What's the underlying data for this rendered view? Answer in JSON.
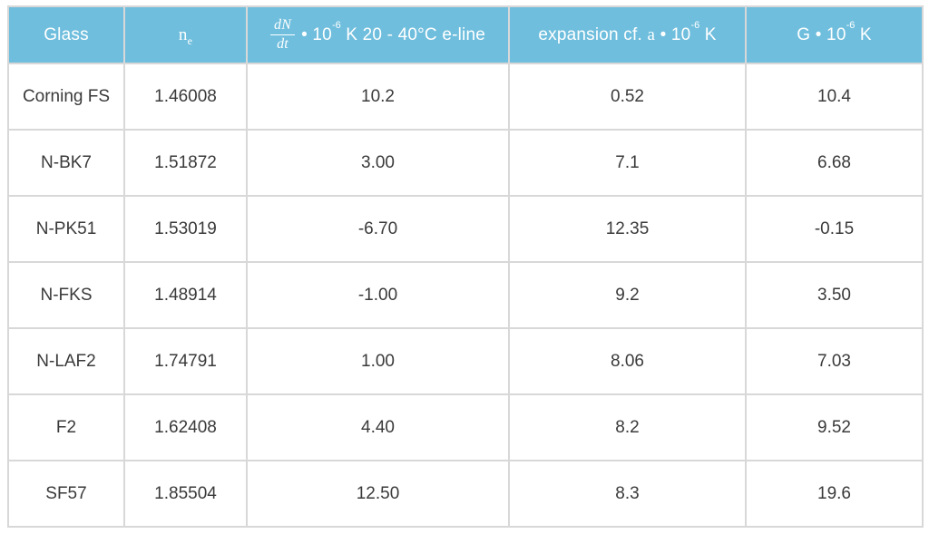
{
  "header": {
    "glass": "Glass",
    "ne_base": "n",
    "ne_sub": "e",
    "dndt_num": "dN",
    "dndt_den": "dt",
    "dndt_mid": "• 10",
    "dndt_sup": "-6",
    "dndt_rest": " K 20 - 40°C e-line",
    "expansion_pre": "expansion cf. ",
    "expansion_sym": "a",
    "expansion_mid": " • 10",
    "expansion_sup": "-6",
    "expansion_post": " K",
    "g_pre": "G • 10",
    "g_sup": "-6",
    "g_post": " K"
  },
  "rows": [
    {
      "glass": "Corning FS",
      "ne": "1.46008",
      "dndt": "10.2",
      "expansion": "0.52",
      "g": "10.4"
    },
    {
      "glass": "N-BK7",
      "ne": "1.51872",
      "dndt": "3.00",
      "expansion": "7.1",
      "g": "6.68"
    },
    {
      "glass": "N-PK51",
      "ne": "1.53019",
      "dndt": "-6.70",
      "expansion": "12.35",
      "g": "-0.15"
    },
    {
      "glass": "N-FKS",
      "ne": "1.48914",
      "dndt": "-1.00",
      "expansion": "9.2",
      "g": "3.50"
    },
    {
      "glass": "N-LAF2",
      "ne": "1.74791",
      "dndt": "1.00",
      "expansion": "8.06",
      "g": "7.03"
    },
    {
      "glass": "F2",
      "ne": "1.62408",
      "dndt": "4.40",
      "expansion": "8.2",
      "g": "9.52"
    },
    {
      "glass": "SF57",
      "ne": "1.85504",
      "dndt": "12.50",
      "expansion": "8.3",
      "g": "19.6"
    }
  ],
  "colors": {
    "header_bg": "#6fbedd",
    "header_text": "#ffffff",
    "border": "#d8d8d8",
    "body_text": "#3a3a3a"
  },
  "chart_data": {
    "type": "table",
    "title": "",
    "columns": [
      "Glass",
      "n_e",
      "dN/dt • 10^-6 K 20 - 40°C e-line",
      "expansion cf. a • 10^-6 K",
      "G • 10^-6 K"
    ],
    "rows": [
      [
        "Corning FS",
        1.46008,
        10.2,
        0.52,
        10.4
      ],
      [
        "N-BK7",
        1.51872,
        3.0,
        7.1,
        6.68
      ],
      [
        "N-PK51",
        1.53019,
        -6.7,
        12.35,
        -0.15
      ],
      [
        "N-FKS",
        1.48914,
        -1.0,
        9.2,
        3.5
      ],
      [
        "N-LAF2",
        1.74791,
        1.0,
        8.06,
        7.03
      ],
      [
        "F2",
        1.62408,
        4.4,
        8.2,
        9.52
      ],
      [
        "SF57",
        1.85504,
        12.5,
        8.3,
        19.6
      ]
    ]
  }
}
